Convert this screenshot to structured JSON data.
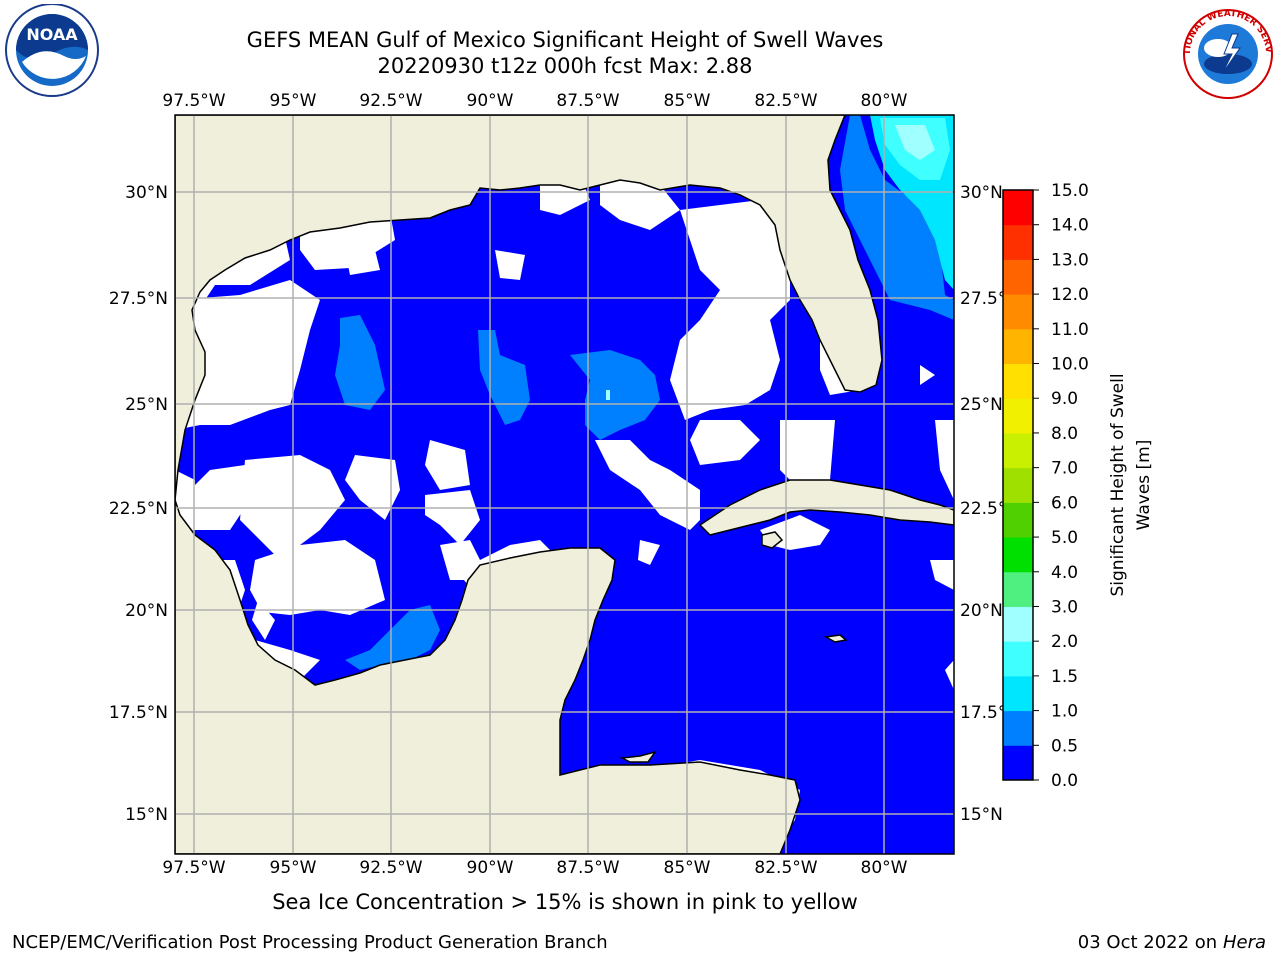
{
  "header": {
    "title_line1": "GEFS MEAN Gulf of Mexico Significant Height of Swell Waves",
    "title_line2": "20220930 t12z 000h fcst   Max: 2.88"
  },
  "map": {
    "lon_ticks_top": [
      "97.5°W",
      "95°W",
      "92.5°W",
      "90°W",
      "87.5°W",
      "85°W",
      "82.5°W",
      "80°W"
    ],
    "lon_ticks_bottom": [
      "97.5°W",
      "95°W",
      "92.5°W",
      "90°W",
      "87.5°W",
      "85°W",
      "82.5°W",
      "80°W"
    ],
    "lat_ticks_left": [
      "30°N",
      "27.5°N",
      "25°N",
      "22.5°N",
      "20°N",
      "17.5°N",
      "15°N"
    ],
    "lat_ticks_right": [
      "30°N",
      "27.5°N",
      "25°N",
      "22.5°N",
      "20°N",
      "17.5°N",
      "15°N"
    ],
    "colors": {
      "land": "#efefdc",
      "below_threshold": "#ffffff",
      "grid": "#b0b0b0"
    }
  },
  "colorbar": {
    "label": "Significant Height of Swell Waves [m]",
    "label_line1": "Significant Height of Swell",
    "label_line2": "Waves [m]",
    "ticks": [
      "0.0",
      "0.5",
      "1.0",
      "1.5",
      "2.0",
      "3.0",
      "4.0",
      "5.0",
      "6.0",
      "7.0",
      "8.0",
      "9.0",
      "10.0",
      "11.0",
      "12.0",
      "13.0",
      "14.0",
      "15.0"
    ],
    "colors": [
      "#0000ff",
      "#0080ff",
      "#00e6ff",
      "#40ffff",
      "#a0ffff",
      "#50f080",
      "#00e000",
      "#50d000",
      "#a0e000",
      "#c8f000",
      "#f0f000",
      "#ffe000",
      "#ffb400",
      "#ff8c00",
      "#ff6400",
      "#ff3000",
      "#ff0000"
    ]
  },
  "footer": {
    "note": "Sea Ice Concentration > 15% is shown in pink to yellow",
    "left": "NCEP/EMC/Verification Post Processing Product Generation Branch",
    "right_date": "03 Oct 2022 on ",
    "right_machine": "Hera"
  },
  "logos": {
    "noaa_text": "NOAA",
    "nws_text": "NATIONAL WEATHER SERVICE"
  }
}
